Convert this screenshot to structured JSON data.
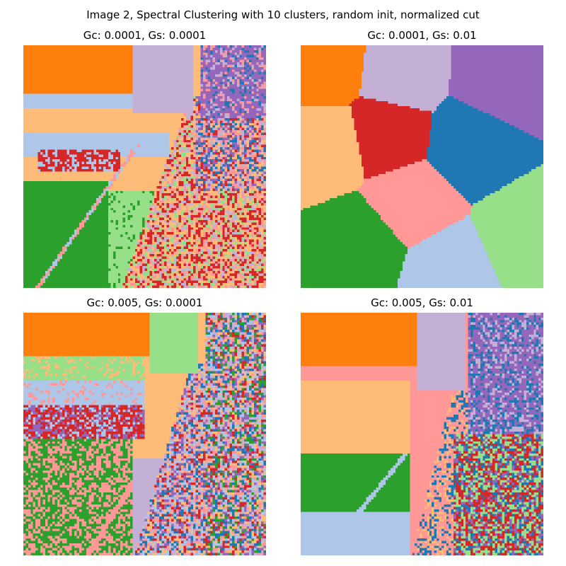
{
  "chart_data": {
    "type": "heatmap",
    "title": "Image 2, Spectral Clustering with 10 clusters, random init, normalized cut",
    "n_clusters": 10,
    "grid": false,
    "palette": [
      "#1f77b4",
      "#aec7e8",
      "#ff7f0e",
      "#ffbb78",
      "#2ca02c",
      "#98df8a",
      "#d62728",
      "#ff9896",
      "#9467bd",
      "#c5b0d5"
    ],
    "panels": [
      {
        "title": "Gc: 0.0001, Gs: 0.0001",
        "gc": 0.0001,
        "gs": 0.0001
      },
      {
        "title": "Gc: 0.0001, Gs: 0.01",
        "gc": 0.0001,
        "gs": 0.01
      },
      {
        "title": "Gc: 0.005, Gs: 0.0001",
        "gc": 0.005,
        "gs": 0.0001
      },
      {
        "title": "Gc: 0.005, Gs: 0.01",
        "gc": 0.005,
        "gs": 0.01
      }
    ]
  }
}
